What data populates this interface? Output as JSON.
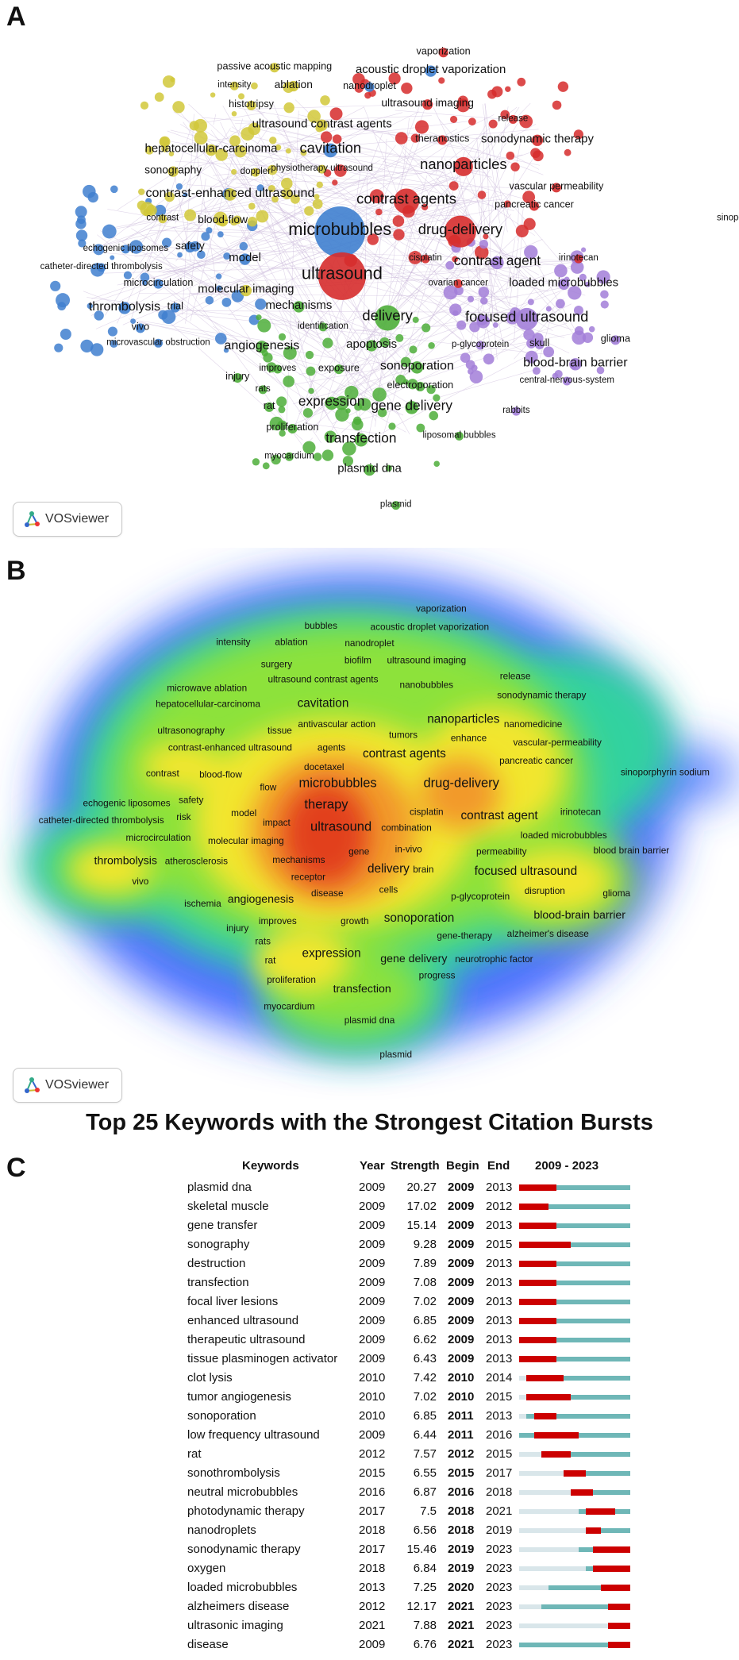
{
  "panels": {
    "a": "A",
    "b": "B",
    "c": "C"
  },
  "vosviewer": {
    "label": "VOSviewer"
  },
  "network": {
    "colors": {
      "red": "#d62c2c",
      "blue": "#3f7fcf",
      "green": "#4eae3a",
      "yellow": "#d1c83a",
      "purple": "#a27ed8"
    },
    "labels": [
      {
        "text": "vaporization",
        "c": "red"
      },
      {
        "text": "passive acoustic mapping",
        "c": "yellow"
      },
      {
        "text": "acoustic droplet vaporization",
        "c": "blue"
      },
      {
        "text": "ablation",
        "c": "yellow"
      },
      {
        "text": "intensity",
        "c": "yellow"
      },
      {
        "text": "nanodroplet",
        "c": "blue"
      },
      {
        "text": "histotripsy",
        "c": "yellow"
      },
      {
        "text": "ultrasound imaging",
        "c": "red"
      },
      {
        "text": "release",
        "c": "red"
      },
      {
        "text": "ultrasound contrast agents",
        "c": "yellow"
      },
      {
        "text": "theranostics",
        "c": "red"
      },
      {
        "text": "sonodynamic therapy",
        "c": "red"
      },
      {
        "text": "hepatocellular-carcinoma",
        "c": "yellow"
      },
      {
        "text": "cavitation",
        "c": "blue"
      },
      {
        "text": "nanoparticles",
        "c": "red"
      },
      {
        "text": "sonography",
        "c": "yellow"
      },
      {
        "text": "doppler",
        "c": "yellow"
      },
      {
        "text": "physiotherapy ultrasound",
        "c": "yellow"
      },
      {
        "text": "vascular permeability",
        "c": "red"
      },
      {
        "text": "contrast-enhanced ultrasound",
        "c": "yellow"
      },
      {
        "text": "contrast agents",
        "c": "red"
      },
      {
        "text": "pancreatic cancer",
        "c": "red"
      },
      {
        "text": "sinoporphyrin sodium",
        "c": "red"
      },
      {
        "text": "contrast",
        "c": "yellow"
      },
      {
        "text": "blood-flow",
        "c": "yellow"
      },
      {
        "text": "microbubbles",
        "c": "blue"
      },
      {
        "text": "drug-delivery",
        "c": "red"
      },
      {
        "text": "echogenic liposomes",
        "c": "blue"
      },
      {
        "text": "safety",
        "c": "blue"
      },
      {
        "text": "cisplatin",
        "c": "red"
      },
      {
        "text": "irinotecan",
        "c": "red"
      },
      {
        "text": "model",
        "c": "blue"
      },
      {
        "text": "contrast agent",
        "c": "purple"
      },
      {
        "text": "catheter-directed thrombolysis",
        "c": "blue"
      },
      {
        "text": "ultrasound",
        "c": "red"
      },
      {
        "text": "microcirculation",
        "c": "blue"
      },
      {
        "text": "molecular imaging",
        "c": "yellow"
      },
      {
        "text": "ovarian cancer",
        "c": "red"
      },
      {
        "text": "loaded microbubbles",
        "c": "purple"
      },
      {
        "text": "thrombolysis",
        "c": "blue"
      },
      {
        "text": "trial",
        "c": "blue"
      },
      {
        "text": "mechanisms",
        "c": "green"
      },
      {
        "text": "delivery",
        "c": "green"
      },
      {
        "text": "focused ultrasound",
        "c": "purple"
      },
      {
        "text": "vivo",
        "c": "blue"
      },
      {
        "text": "identification",
        "c": "green"
      },
      {
        "text": "glioma",
        "c": "purple"
      },
      {
        "text": "microvascular obstruction",
        "c": "blue"
      },
      {
        "text": "angiogenesis",
        "c": "green"
      },
      {
        "text": "apoptosis",
        "c": "green"
      },
      {
        "text": "p-glycoprotein",
        "c": "purple"
      },
      {
        "text": "skull",
        "c": "purple"
      },
      {
        "text": "blood-brain barrier",
        "c": "purple"
      },
      {
        "text": "improves",
        "c": "green"
      },
      {
        "text": "exposure",
        "c": "green"
      },
      {
        "text": "sonoporation",
        "c": "green"
      },
      {
        "text": "injury",
        "c": "green"
      },
      {
        "text": "central-nervous-system",
        "c": "purple"
      },
      {
        "text": "rats",
        "c": "green"
      },
      {
        "text": "electroporation",
        "c": "green"
      },
      {
        "text": "expression",
        "c": "green"
      },
      {
        "text": "gene delivery",
        "c": "green"
      },
      {
        "text": "rat",
        "c": "green"
      },
      {
        "text": "rabbits",
        "c": "purple"
      },
      {
        "text": "proliferation",
        "c": "green"
      },
      {
        "text": "liposomal bubbles",
        "c": "green"
      },
      {
        "text": "transfection",
        "c": "green"
      },
      {
        "text": "myocardium",
        "c": "green"
      },
      {
        "text": "plasmid dna",
        "c": "green"
      },
      {
        "text": "plasmid",
        "c": "green"
      }
    ]
  },
  "density": {
    "labels": [
      "vaporization",
      "bubbles",
      "acoustic droplet vaporization",
      "intensity",
      "ablation",
      "nanodroplet",
      "surgery",
      "biofilm",
      "ultrasound imaging",
      "ultrasound contrast agents",
      "nanobubbles",
      "release",
      "microwave ablation",
      "sonodynamic therapy",
      "hepatocellular-carcinoma",
      "cavitation",
      "antivascular action",
      "nanoparticles",
      "nanomedicine",
      "ultrasonography",
      "tissue",
      "tumors",
      "enhance",
      "vascular-permeability",
      "contrast-enhanced ultrasound",
      "agents",
      "contrast agents",
      "pancreatic cancer",
      "docetaxel",
      "sinoporphyrin sodium",
      "contrast",
      "blood-flow",
      "microbubbles",
      "drug-delivery",
      "flow",
      "echogenic liposomes",
      "safety",
      "therapy",
      "cisplatin",
      "irinotecan",
      "catheter-directed thrombolysis",
      "risk",
      "model",
      "impact",
      "ultrasound",
      "combination",
      "contrast agent",
      "microcirculation",
      "molecular imaging",
      "loaded microbubbles",
      "gene",
      "in-vivo",
      "permeability",
      "blood brain barrier",
      "thrombolysis",
      "atherosclerosis",
      "mechanisms",
      "delivery",
      "brain",
      "focused ultrasound",
      "vivo",
      "receptor",
      "disease",
      "cells",
      "disruption",
      "glioma",
      "ischemia",
      "angiogenesis",
      "p-glycoprotein",
      "improves",
      "growth",
      "sonoporation",
      "blood-brain barrier",
      "injury",
      "gene-therapy",
      "alzheimer's disease",
      "rats",
      "expression",
      "gene delivery",
      "neurotrophic factor",
      "rat",
      "progress",
      "proliferation",
      "transfection",
      "myocardium",
      "plasmid dna",
      "plasmid"
    ]
  },
  "burst": {
    "title": "Top 25 Keywords with the Strongest Citation Bursts",
    "headers": {
      "keywords": "Keywords",
      "year": "Year",
      "strength": "Strength",
      "begin": "Begin",
      "end": "End",
      "range": "2009 - 2023"
    },
    "span": [
      2009,
      2023
    ],
    "colors": {
      "burst": "#cc0000",
      "active": "#6fb7b7",
      "inactive": "#d9e6ea"
    },
    "rows": [
      {
        "keyword": "plasmid dna",
        "year": 2009,
        "strength": "20.27",
        "begin": 2009,
        "end": 2013
      },
      {
        "keyword": "skeletal muscle",
        "year": 2009,
        "strength": "17.02",
        "begin": 2009,
        "end": 2012
      },
      {
        "keyword": "gene transfer",
        "year": 2009,
        "strength": "15.14",
        "begin": 2009,
        "end": 2013
      },
      {
        "keyword": "sonography",
        "year": 2009,
        "strength": "9.28",
        "begin": 2009,
        "end": 2015
      },
      {
        "keyword": "destruction",
        "year": 2009,
        "strength": "7.89",
        "begin": 2009,
        "end": 2013
      },
      {
        "keyword": "transfection",
        "year": 2009,
        "strength": "7.08",
        "begin": 2009,
        "end": 2013
      },
      {
        "keyword": "focal liver lesions",
        "year": 2009,
        "strength": "7.02",
        "begin": 2009,
        "end": 2013
      },
      {
        "keyword": "enhanced ultrasound",
        "year": 2009,
        "strength": "6.85",
        "begin": 2009,
        "end": 2013
      },
      {
        "keyword": "therapeutic ultrasound",
        "year": 2009,
        "strength": "6.62",
        "begin": 2009,
        "end": 2013
      },
      {
        "keyword": "tissue plasminogen activator",
        "year": 2009,
        "strength": "6.43",
        "begin": 2009,
        "end": 2013
      },
      {
        "keyword": "clot lysis",
        "year": 2010,
        "strength": "7.42",
        "begin": 2010,
        "end": 2014
      },
      {
        "keyword": "tumor angiogenesis",
        "year": 2010,
        "strength": "7.02",
        "begin": 2010,
        "end": 2015
      },
      {
        "keyword": "sonoporation",
        "year": 2010,
        "strength": "6.85",
        "begin": 2011,
        "end": 2013
      },
      {
        "keyword": "low frequency ultrasound",
        "year": 2009,
        "strength": "6.44",
        "begin": 2011,
        "end": 2016
      },
      {
        "keyword": "rat",
        "year": 2012,
        "strength": "7.57",
        "begin": 2012,
        "end": 2015
      },
      {
        "keyword": "sonothrombolysis",
        "year": 2015,
        "strength": "6.55",
        "begin": 2015,
        "end": 2017
      },
      {
        "keyword": "neutral microbubbles",
        "year": 2016,
        "strength": "6.87",
        "begin": 2016,
        "end": 2018
      },
      {
        "keyword": "photodynamic therapy",
        "year": 2017,
        "strength": "7.5",
        "begin": 2018,
        "end": 2021
      },
      {
        "keyword": "nanodroplets",
        "year": 2018,
        "strength": "6.56",
        "begin": 2018,
        "end": 2019
      },
      {
        "keyword": "sonodynamic therapy",
        "year": 2017,
        "strength": "15.46",
        "begin": 2019,
        "end": 2023
      },
      {
        "keyword": "oxygen",
        "year": 2018,
        "strength": "6.84",
        "begin": 2019,
        "end": 2023
      },
      {
        "keyword": "loaded microbubbles",
        "year": 2013,
        "strength": "7.25",
        "begin": 2020,
        "end": 2023
      },
      {
        "keyword": "alzheimers disease",
        "year": 2012,
        "strength": "12.17",
        "begin": 2021,
        "end": 2023
      },
      {
        "keyword": "ultrasonic imaging",
        "year": 2021,
        "strength": "7.88",
        "begin": 2021,
        "end": 2023
      },
      {
        "keyword": "disease",
        "year": 2009,
        "strength": "6.76",
        "begin": 2021,
        "end": 2023
      }
    ]
  }
}
